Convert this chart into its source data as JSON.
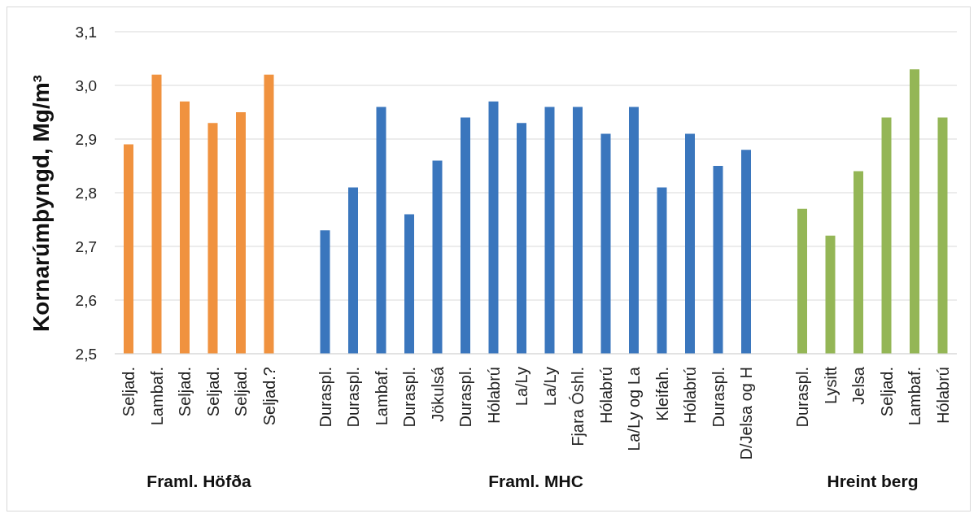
{
  "chart_data": {
    "type": "bar",
    "ylabel": "Kornarúmþyngd, Mg/m³",
    "categories": [
      "Seljad.",
      "Lambaf.",
      "Seljad.",
      "Seljad.",
      "Seljad.",
      "Seljad.?",
      null,
      "Duraspl.",
      "Duraspl.",
      "Lambaf.",
      "Duraspl.",
      "Jökulsá",
      "Duraspl.",
      "Hólabrú",
      "La/Ly",
      "La/Ly",
      "Fjara Óshl.",
      "Hólabrú",
      "La/Ly og La",
      "Kleifah.",
      "Hólabrú",
      "Duraspl.",
      "D/Jelsa og H",
      null,
      "Duraspl.",
      "Lysitt",
      "Jelsa",
      "Seljad.",
      "Lambaf.",
      "Hólabrú"
    ],
    "values": [
      2.89,
      3.02,
      2.97,
      2.93,
      2.95,
      3.02,
      null,
      2.73,
      2.81,
      2.96,
      2.76,
      2.86,
      2.94,
      2.97,
      2.93,
      2.96,
      2.96,
      2.91,
      2.96,
      2.81,
      2.91,
      2.85,
      2.88,
      null,
      2.77,
      2.72,
      2.84,
      2.94,
      3.03,
      2.94
    ],
    "colors": [
      "#f0923f",
      "#f0923f",
      "#f0923f",
      "#f0923f",
      "#f0923f",
      "#f0923f",
      null,
      "#3a76bd",
      "#3a76bd",
      "#3a76bd",
      "#3a76bd",
      "#3a76bd",
      "#3a76bd",
      "#3a76bd",
      "#3a76bd",
      "#3a76bd",
      "#3a76bd",
      "#3a76bd",
      "#3a76bd",
      "#3a76bd",
      "#3a76bd",
      "#3a76bd",
      "#3a76bd",
      null,
      "#94b656",
      "#94b656",
      "#94b656",
      "#94b656",
      "#94b656",
      "#94b656"
    ],
    "annotations": [
      "Framl. Höfða",
      "Framl. MHC",
      "Hreint berg"
    ],
    "ylim": [
      2.5,
      3.1
    ],
    "yticks": [
      {
        "value": 2.5,
        "label": "2,5"
      },
      {
        "value": 2.6,
        "label": "2,6"
      },
      {
        "value": 2.7,
        "label": "2,7"
      },
      {
        "value": 2.8,
        "label": "2,8"
      },
      {
        "value": 2.9,
        "label": "2,9"
      },
      {
        "value": 3.0,
        "label": "3,0"
      },
      {
        "value": 3.1,
        "label": "3,1"
      }
    ],
    "grid": "y"
  }
}
